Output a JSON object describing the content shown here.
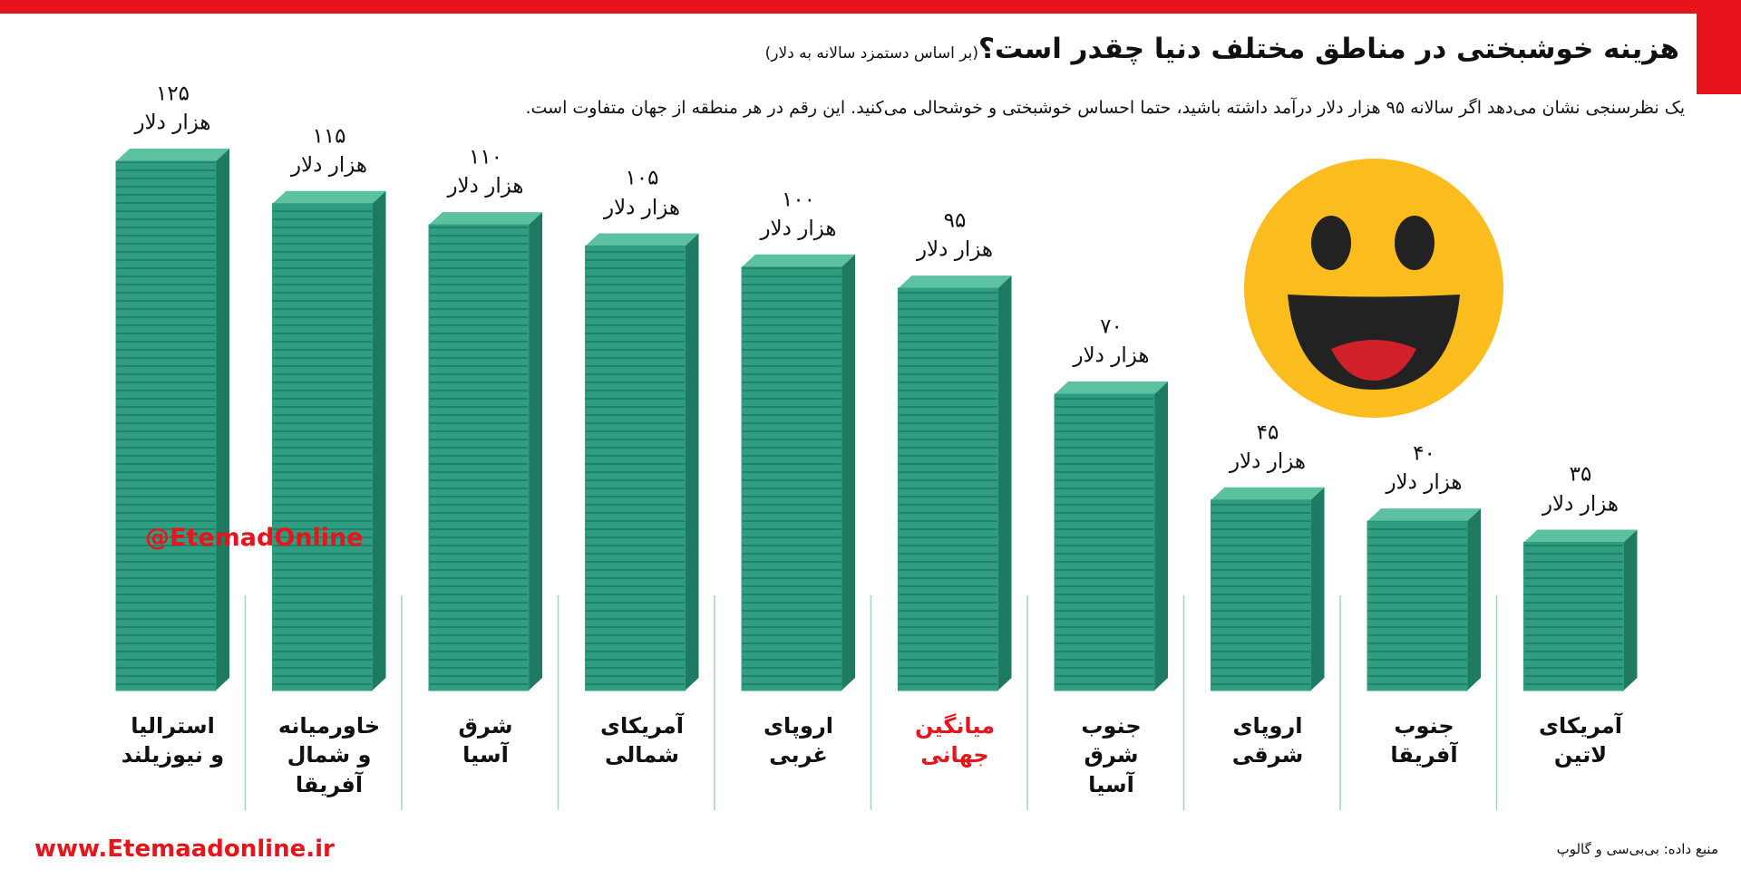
{
  "header": {
    "title": "هزینه خوشبختی در مناطق مختلف دنیا چقدر است؟",
    "subtitle": "(بر اساس دستمزد سالانه به دلار)",
    "description": "یک نظرسنجی نشان می‌دهد اگر سالانه ۹۵ هزار دلار درآمد داشته باشید، حتما احساس خوشبختی و خوشحالی می‌کنید. این رقم در هر منطقه از جهان متفاوت است."
  },
  "chart_data": {
    "type": "bar",
    "categories": [
      "استرالیا\nو نیوزیلند",
      "خاورمیانه\nو شمال\nآفریقا",
      "شرق\nآسیا",
      "آمریکای\nشمالی",
      "اروپای\nغربی",
      "میانگین\nجهانی",
      "جنوب\nشرق\nآسیا",
      "اروپای\nشرقی",
      "جنوب\nآفریقا",
      "آمریکای\nلاتین"
    ],
    "values": [
      125,
      115,
      110,
      105,
      100,
      95,
      70,
      45,
      40,
      35
    ],
    "value_labels": [
      "۱۲۵\nهزار دلار",
      "۱۱۵\nهزار دلار",
      "۱۱۰\nهزار دلار",
      "۱۰۵\nهزار دلار",
      "۱۰۰\nهزار دلار",
      "۹۵\nهزار دلار",
      "۷۰\nهزار دلار",
      "۴۵\nهزار دلار",
      "۴۰\nهزار دلار",
      "۳۵\nهزار دلار"
    ],
    "color": "#2f9e80",
    "highlight_index": 5,
    "highlight_color": "#e8141c",
    "ylim": [
      0,
      125
    ]
  },
  "footer": {
    "source": "منبع داده: بی‌بی‌سی و گالوپ",
    "website": "www.Etemaadonline.ir",
    "handle": "@EtemadOnline"
  }
}
